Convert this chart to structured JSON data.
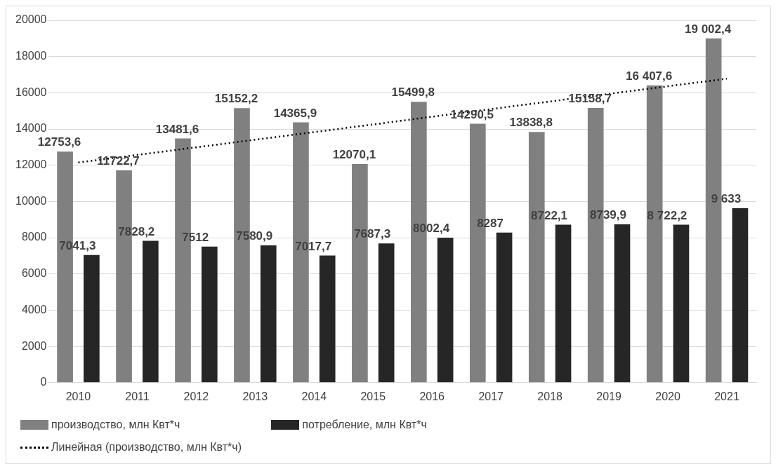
{
  "chart_data": {
    "type": "bar",
    "categories": [
      "2010",
      "2011",
      "2012",
      "2013",
      "2014",
      "2015",
      "2016",
      "2017",
      "2018",
      "2019",
      "2020",
      "2021"
    ],
    "series": [
      {
        "name": "производство, млн Квт*ч",
        "color": "#808080",
        "values": [
          12753.6,
          11722.7,
          13481.6,
          15152.2,
          14365.9,
          12070.1,
          15499.8,
          14290.5,
          13838.8,
          15158.7,
          16407.6,
          19002.4
        ],
        "value_labels": [
          "12753,6",
          "11722,7",
          "13481,6",
          "15152,2",
          "14365,9",
          "12070,1",
          "15499,8",
          "14290,5",
          "13838,8",
          "15158,7",
          "16 407,6",
          "19 002,4"
        ]
      },
      {
        "name": "потребление, млн Квт*ч",
        "color": "#262626",
        "values": [
          7041.3,
          7828.2,
          7512,
          7580.9,
          7017.7,
          7687.3,
          8002.4,
          8287,
          8722.1,
          8739.9,
          8722.2,
          9633
        ],
        "value_labels": [
          "7041,3",
          "7828,2",
          "7512",
          "7580,9",
          "7017,7",
          "7687,3",
          "8002,4",
          "8287",
          "8722,1",
          "8739,9",
          "8 722,2",
          "9 633"
        ]
      },
      {
        "name": "Линейная (производство, млн Квт*ч)",
        "type": "line",
        "color": "#000000",
        "line_style": "dotted",
        "values": [
          12150,
          12570,
          12990,
          13410,
          13830,
          14250,
          14680,
          15100,
          15520,
          15940,
          16360,
          16780
        ]
      }
    ],
    "ylim": [
      0,
      20000
    ],
    "yticks": [
      0,
      2000,
      4000,
      6000,
      8000,
      10000,
      12000,
      14000,
      16000,
      18000,
      20000
    ],
    "grid": "y",
    "legend": "bottom"
  }
}
